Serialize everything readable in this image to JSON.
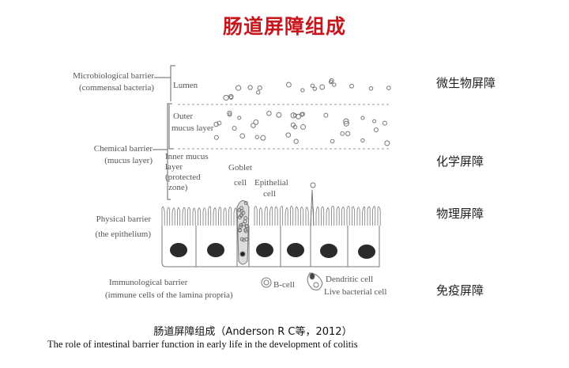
{
  "title": "肠道屏障组成",
  "diagram": {
    "left_labels": {
      "microbiological": [
        "Microbiological barrier",
        "(commensal bacteria)"
      ],
      "chemical": [
        "Chemical barrier",
        "(mucus layer)"
      ],
      "physical": [
        "Physical barrier",
        "(the epithelium)"
      ],
      "immunological": [
        "Immunological barrier",
        "(immune cells of the lamina propria)"
      ]
    },
    "layer_labels": {
      "lumen": "Lumen",
      "outer_mucus": [
        "Outer",
        "mucus layer"
      ],
      "inner_mucus": [
        "Inner mucus",
        "layer",
        "(protected",
        "zone)"
      ],
      "goblet": [
        "Goblet",
        "cell"
      ],
      "epithelial": [
        "Epithelial",
        "cell"
      ],
      "b_cell": "B-cell",
      "dendritic": "Dendritic cell",
      "live_bacterial": "Live bacterial cell"
    }
  },
  "right_labels": [
    "微生物屏障",
    "化学屏障",
    "物理屏障",
    "免疫屏障"
  ],
  "caption": {
    "line1": "肠道屏障组成（Anderson R C等，2012）",
    "line2": "The role of intestinal barrier function in early life in the development of colitis"
  }
}
